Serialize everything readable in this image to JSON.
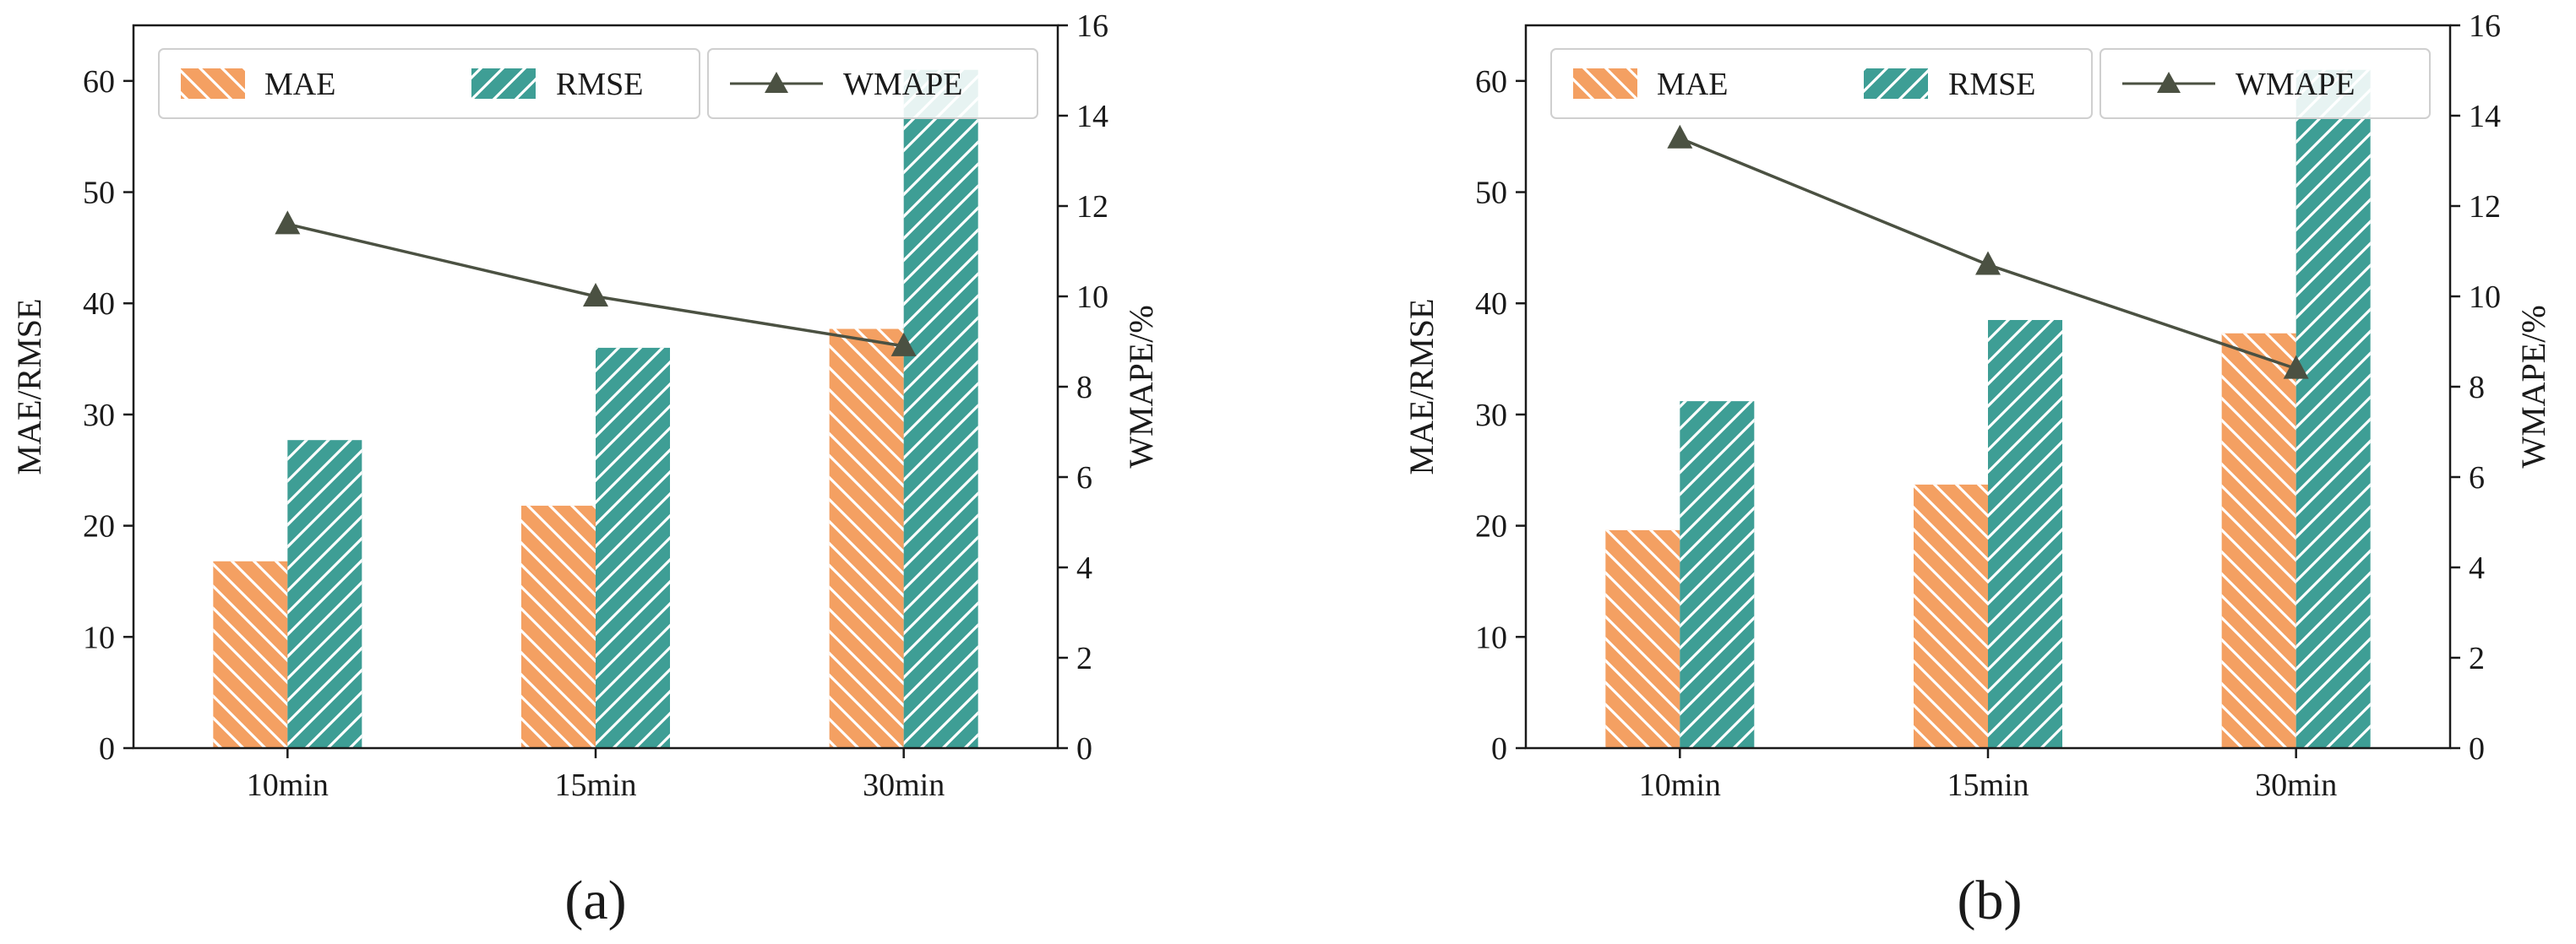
{
  "chart_data": [
    {
      "type": "bar",
      "panel_label": "(a)",
      "categories": [
        "10min",
        "15min",
        "30min"
      ],
      "series": [
        {
          "name": "MAE",
          "kind": "bar",
          "axis": "left",
          "values": [
            16.8,
            21.8,
            37.7
          ]
        },
        {
          "name": "RMSE",
          "kind": "bar",
          "axis": "left",
          "values": [
            27.7,
            36.0,
            61.0
          ]
        },
        {
          "name": "WMAPE",
          "kind": "line",
          "axis": "right",
          "marker": "triangle",
          "values": [
            11.6,
            10.0,
            8.9
          ]
        }
      ],
      "ylabel": "MAE/RMSE",
      "y2label": "WMAPE/%",
      "ylim": [
        0,
        65
      ],
      "y2lim": [
        0,
        16
      ],
      "yticks": [
        0,
        10,
        20,
        30,
        40,
        50,
        60
      ],
      "y2ticks": [
        0,
        2,
        4,
        6,
        8,
        10,
        12,
        14,
        16
      ],
      "legend_position": "top",
      "grid": false
    },
    {
      "type": "bar",
      "panel_label": "(b)",
      "categories": [
        "10min",
        "15min",
        "30min"
      ],
      "series": [
        {
          "name": "MAE",
          "kind": "bar",
          "axis": "left",
          "values": [
            19.6,
            23.7,
            37.3
          ]
        },
        {
          "name": "RMSE",
          "kind": "bar",
          "axis": "left",
          "values": [
            31.2,
            38.5,
            61.0
          ]
        },
        {
          "name": "WMAPE",
          "kind": "line",
          "axis": "right",
          "marker": "triangle",
          "values": [
            13.5,
            10.7,
            8.4
          ]
        }
      ],
      "ylabel": "MAE/RMSE",
      "y2label": "WMAPE/%",
      "ylim": [
        0,
        65
      ],
      "y2lim": [
        0,
        16
      ],
      "yticks": [
        0,
        10,
        20,
        30,
        40,
        50,
        60
      ],
      "y2ticks": [
        0,
        2,
        4,
        6,
        8,
        10,
        12,
        14,
        16
      ],
      "legend_position": "top",
      "grid": false
    }
  ],
  "colors": {
    "mae": "#F4A062",
    "rmse": "#3E9E95",
    "wmape": "#4B5142",
    "axis": "#1a1a1a"
  }
}
